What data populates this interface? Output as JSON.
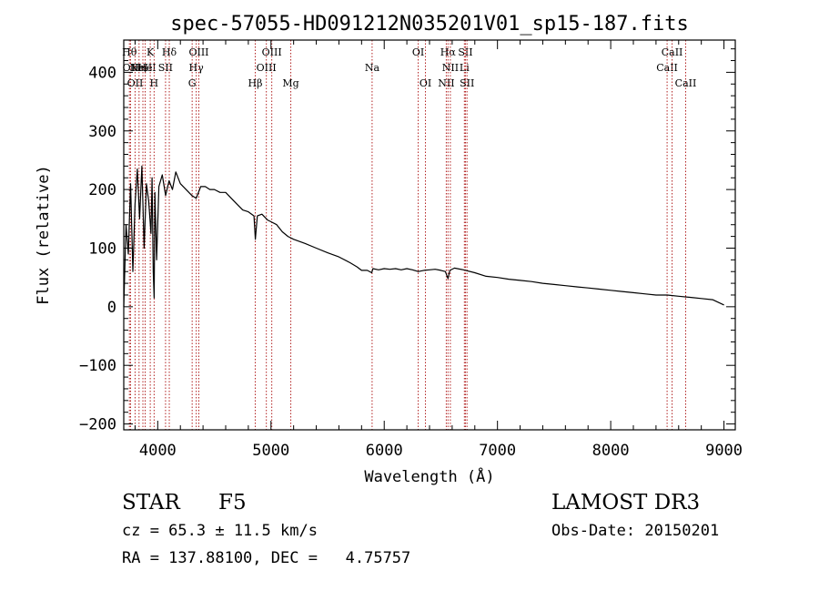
{
  "chart_data": {
    "type": "line",
    "title": "spec-57055-HD091212N035201V01_sp15-187.fits",
    "xlabel": "Wavelength (Å)",
    "ylabel": "Flux (relative)",
    "xlim": [
      3700,
      9100
    ],
    "ylim": [
      -210,
      455
    ],
    "xticks": [
      4000,
      5000,
      6000,
      7000,
      8000,
      9000
    ],
    "yticks": [
      -200,
      -100,
      0,
      100,
      200,
      300,
      400
    ],
    "x_tick_labels": [
      "4000",
      "5000",
      "6000",
      "7000",
      "8000",
      "9000"
    ],
    "y_tick_labels": [
      "−200",
      "−100",
      "0",
      "100",
      "200",
      "300",
      "400"
    ],
    "grid": false,
    "series": [
      {
        "name": "flux",
        "x": [
          3700,
          3720,
          3740,
          3760,
          3780,
          3800,
          3820,
          3840,
          3860,
          3880,
          3900,
          3920,
          3940,
          3950,
          3960,
          3968,
          3975,
          3990,
          4010,
          4040,
          4070,
          4100,
          4130,
          4160,
          4200,
          4250,
          4300,
          4340,
          4380,
          4420,
          4460,
          4500,
          4550,
          4600,
          4650,
          4700,
          4750,
          4800,
          4850,
          4862,
          4880,
          4920,
          4970,
          5000,
          5050,
          5100,
          5150,
          5200,
          5300,
          5400,
          5500,
          5600,
          5700,
          5760,
          5800,
          5850,
          5890,
          5900,
          5950,
          6000,
          6050,
          6100,
          6150,
          6200,
          6250,
          6300,
          6350,
          6400,
          6450,
          6500,
          6540,
          6563,
          6580,
          6620,
          6700,
          6800,
          6900,
          7000,
          7100,
          7200,
          7300,
          7400,
          7500,
          7600,
          7700,
          7800,
          7900,
          8000,
          8100,
          8200,
          8300,
          8400,
          8500,
          8600,
          8700,
          8800,
          8900,
          9000
        ],
        "y": [
          0,
          140,
          90,
          210,
          60,
          175,
          235,
          150,
          240,
          100,
          210,
          180,
          125,
          220,
          60,
          15,
          195,
          80,
          205,
          225,
          190,
          215,
          200,
          230,
          210,
          200,
          190,
          185,
          205,
          205,
          200,
          200,
          195,
          195,
          185,
          175,
          165,
          162,
          155,
          115,
          155,
          158,
          148,
          145,
          140,
          128,
          120,
          115,
          108,
          100,
          92,
          85,
          75,
          68,
          62,
          62,
          58,
          65,
          63,
          65,
          64,
          65,
          63,
          65,
          63,
          60,
          62,
          63,
          64,
          62,
          60,
          48,
          62,
          66,
          63,
          58,
          52,
          50,
          47,
          45,
          43,
          40,
          38,
          36,
          34,
          32,
          30,
          28,
          26,
          24,
          22,
          20,
          20,
          18,
          16,
          14,
          12,
          3
        ]
      }
    ],
    "line_markers": [
      {
        "wavelength": 3750,
        "row": 1,
        "label": "Hθ"
      },
      {
        "wavelength": 3760,
        "row": 2,
        "label": "OII"
      },
      {
        "wavelength": 3800,
        "row": 3,
        "label": "OII"
      },
      {
        "wavelength": 3835,
        "row": 2,
        "label": "Hη"
      },
      {
        "wavelength": 3869,
        "row": 2,
        "label": "NeIII"
      },
      {
        "wavelength": 3889,
        "row": 2,
        "label": "He"
      },
      {
        "wavelength": 3934,
        "row": 1,
        "label": "K"
      },
      {
        "wavelength": 3968,
        "row": 3,
        "label": "H"
      },
      {
        "wavelength": 4102,
        "row": 1,
        "label": "Hδ"
      },
      {
        "wavelength": 4069,
        "row": 2,
        "label": "SII"
      },
      {
        "wavelength": 4304,
        "row": 3,
        "label": "G"
      },
      {
        "wavelength": 4340,
        "row": 2,
        "label": "Hγ"
      },
      {
        "wavelength": 4363,
        "row": 1,
        "label": "OIII"
      },
      {
        "wavelength": 4861,
        "row": 3,
        "label": "Hβ"
      },
      {
        "wavelength": 4959,
        "row": 2,
        "label": "OIII"
      },
      {
        "wavelength": 5007,
        "row": 1,
        "label": "OIII"
      },
      {
        "wavelength": 5175,
        "row": 3,
        "label": "Mg"
      },
      {
        "wavelength": 5893,
        "row": 2,
        "label": "Na"
      },
      {
        "wavelength": 6300,
        "row": 1,
        "label": "OI"
      },
      {
        "wavelength": 6364,
        "row": 3,
        "label": "OI"
      },
      {
        "wavelength": 6548,
        "row": 3,
        "label": "NII"
      },
      {
        "wavelength": 6563,
        "row": 1,
        "label": "Hα"
      },
      {
        "wavelength": 6584,
        "row": 2,
        "label": "NII"
      },
      {
        "wavelength": 6708,
        "row": 2,
        "label": "Li"
      },
      {
        "wavelength": 6717,
        "row": 1,
        "label": "SII"
      },
      {
        "wavelength": 6731,
        "row": 3,
        "label": "SII"
      },
      {
        "wavelength": 8498,
        "row": 2,
        "label": "CaII"
      },
      {
        "wavelength": 8542,
        "row": 1,
        "label": "CaII"
      },
      {
        "wavelength": 8662,
        "row": 3,
        "label": "CaII"
      }
    ],
    "marker_color": "#b22222",
    "line_color": "#000000"
  },
  "info": {
    "object_class": "STAR",
    "subclass": "F5",
    "survey": "LAMOST DR3",
    "redshift": "cz = 65.3 ± 11.5 km/s",
    "obs_date": "Obs-Date: 20150201",
    "coords": "RA = 137.88100, DEC =   4.75757"
  }
}
